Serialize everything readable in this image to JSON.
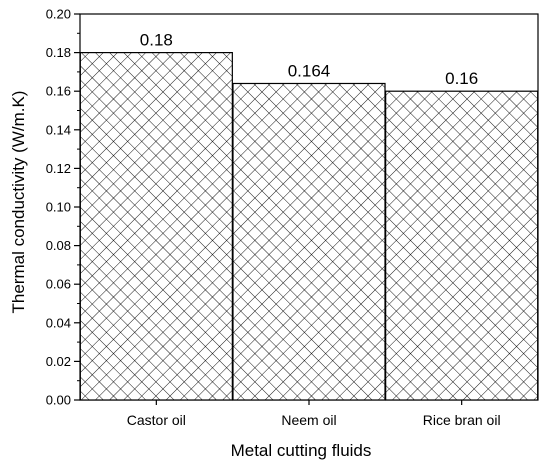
{
  "chart_data": {
    "type": "bar",
    "title": "",
    "xlabel": "Metal cutting fluids",
    "ylabel": "Thermal conductivity (W/m.K)",
    "categories": [
      "Castor oil",
      "Neem oil",
      "Rice bran oil"
    ],
    "values": [
      0.18,
      0.164,
      0.16
    ],
    "data_labels": [
      "0.18",
      "0.164",
      "0.16"
    ],
    "ylim": [
      0,
      0.2
    ],
    "yticks": [
      0.0,
      0.02,
      0.04,
      0.06,
      0.08,
      0.1,
      0.12,
      0.14,
      0.16,
      0.18,
      0.2
    ],
    "ytick_labels": [
      "0.00",
      "0.02",
      "0.04",
      "0.06",
      "0.08",
      "0.10",
      "0.12",
      "0.14",
      "0.16",
      "0.18",
      "0.20"
    ],
    "grid": false,
    "legend": "none",
    "bar_pattern": "crosshatch",
    "bar_color": "#000000"
  }
}
